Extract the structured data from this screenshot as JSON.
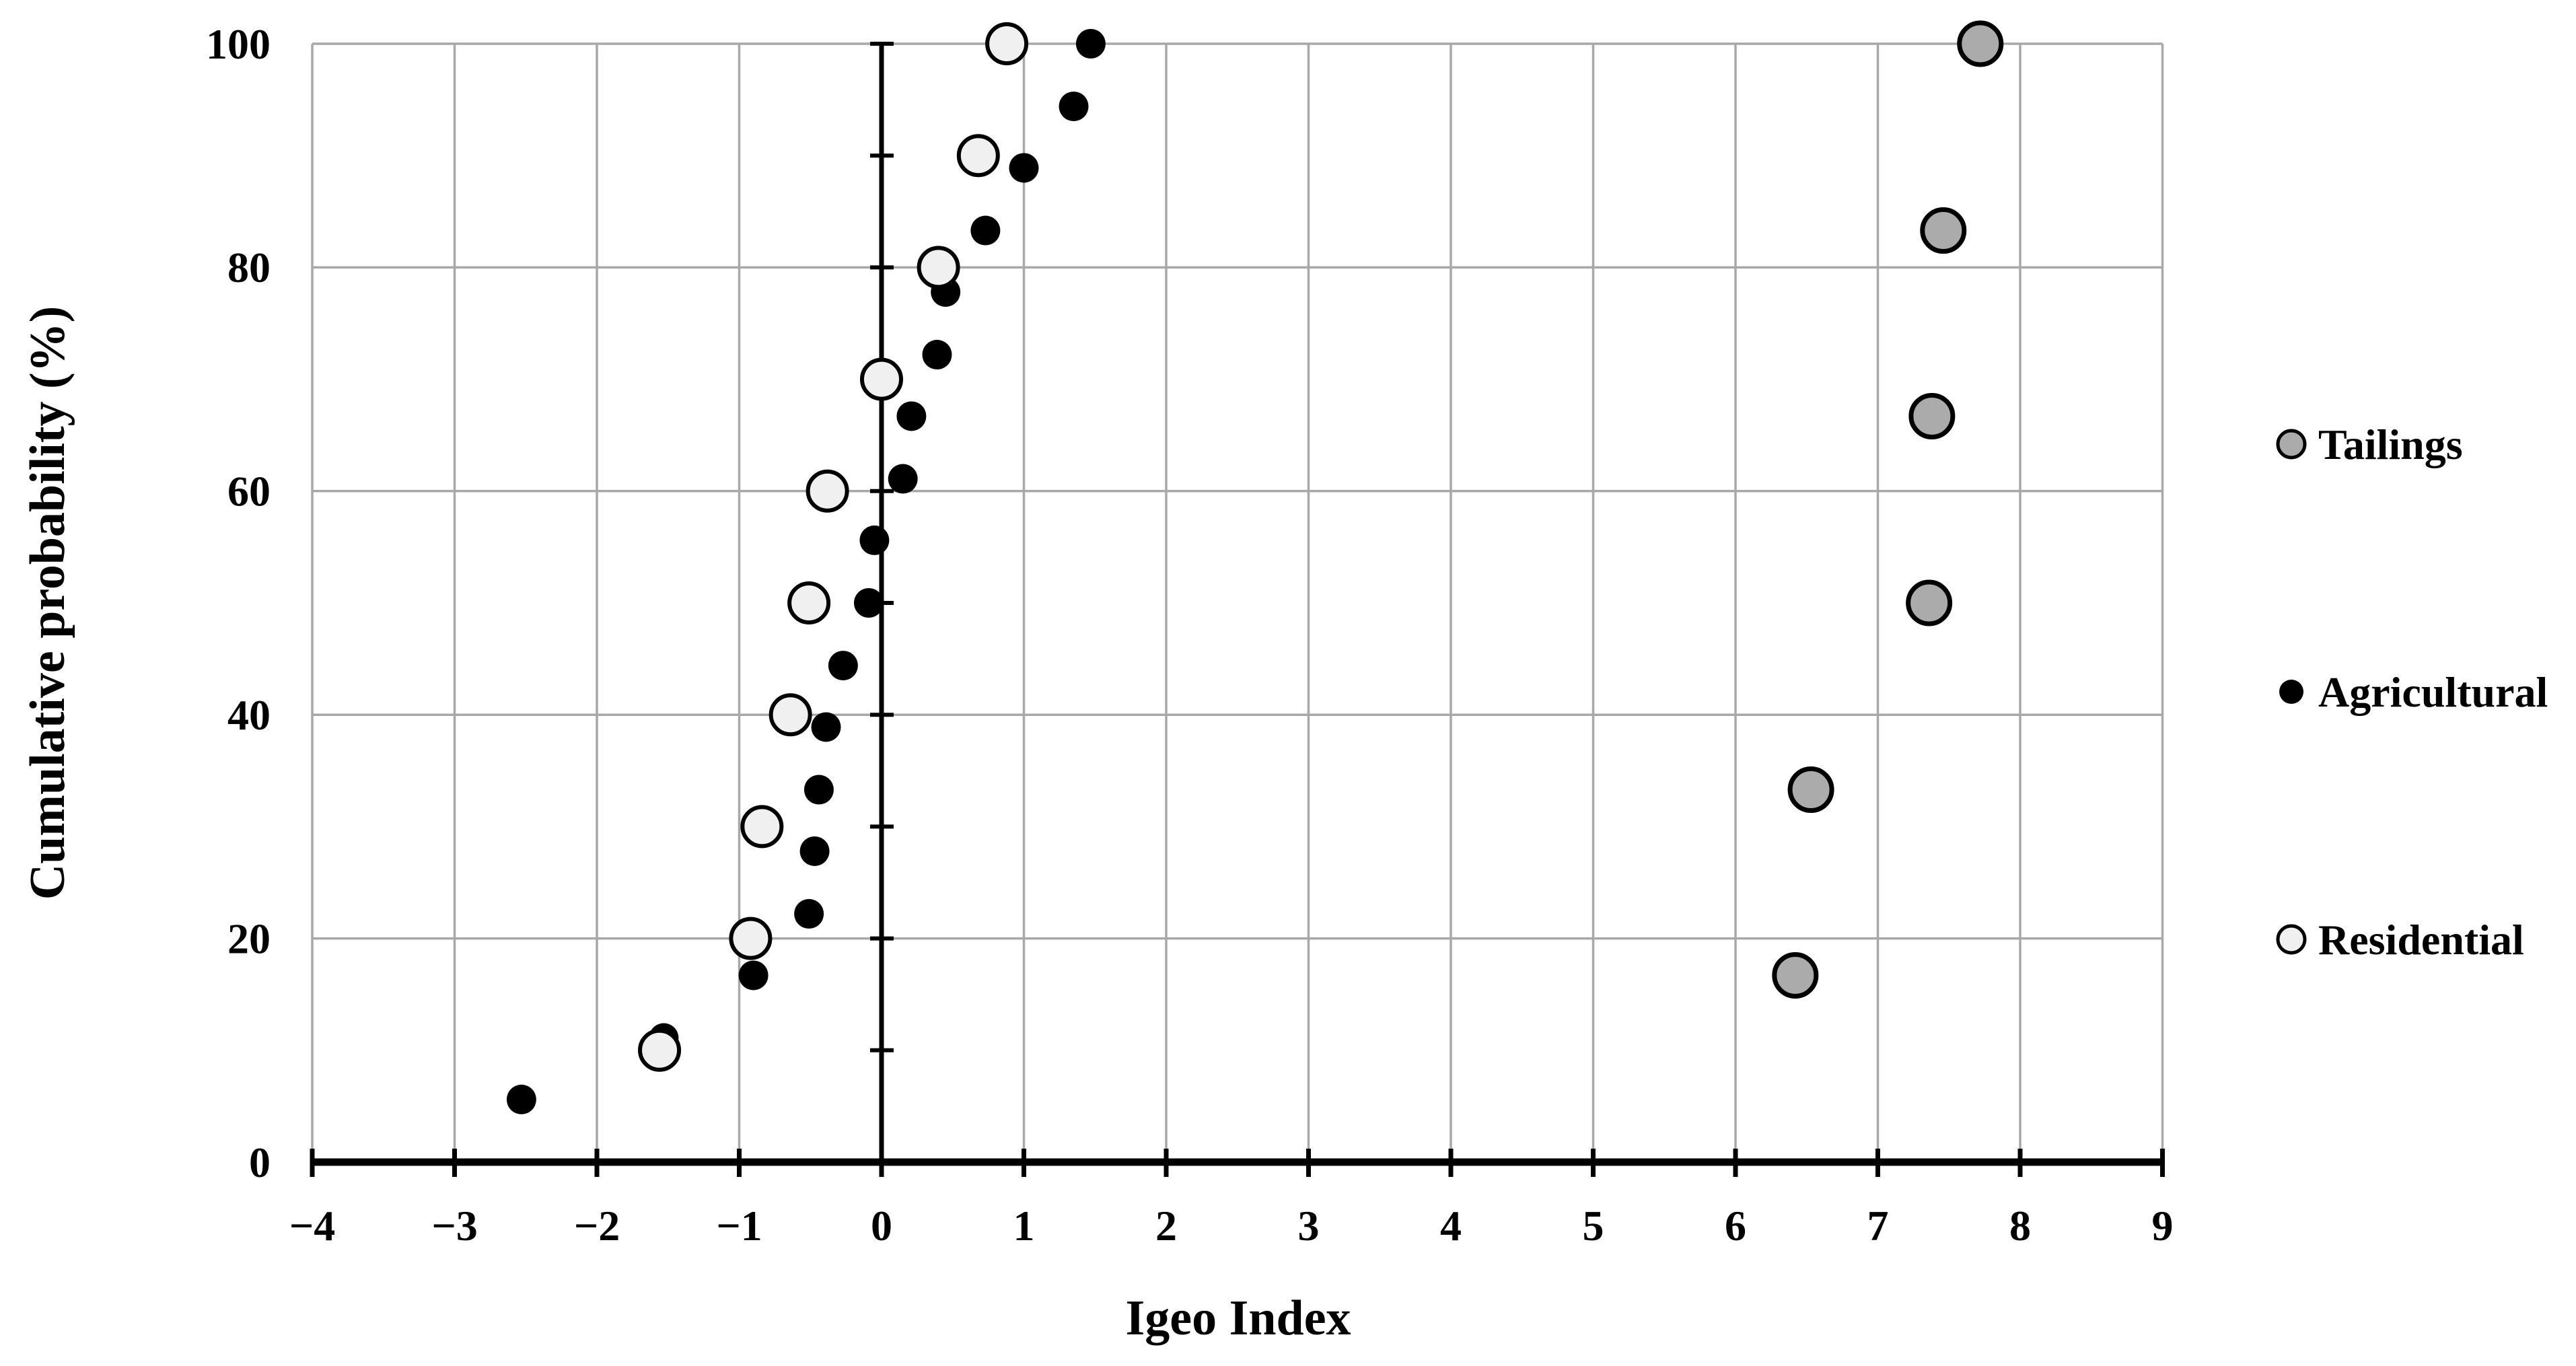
{
  "figure": {
    "background": "#ffffff",
    "text_color": "#000000"
  },
  "chart_data": {
    "type": "scatter",
    "title": "",
    "xlabel": "Igeo Index",
    "ylabel": "Cumulative probability (%)",
    "xlim": [
      -4,
      9
    ],
    "ylim": [
      0,
      100
    ],
    "x_tick_values": [
      -4,
      -3,
      -2,
      -1,
      0,
      1,
      2,
      3,
      4,
      5,
      6,
      7,
      8,
      9
    ],
    "x_tick_labels": [
      "−4",
      "−3",
      "−2",
      "−1",
      "0",
      "1",
      "2",
      "3",
      "4",
      "5",
      "6",
      "7",
      "8",
      "9"
    ],
    "y_tick_values": [
      0,
      20,
      40,
      60,
      80,
      100
    ],
    "y_tick_labels": [
      "0",
      "20",
      "40",
      "60",
      "80",
      "100"
    ],
    "y_axis_minor_tick_step": 10,
    "grid": true,
    "grid_color": "#a8a8a8",
    "axis_color": "#000000",
    "y_axis_drawn_at_x": 0,
    "legend_position": "right",
    "series": [
      {
        "name": "Tailings",
        "z": 2,
        "marker": {
          "shape": "circle",
          "fill": "#ababab",
          "stroke": "#000000",
          "radius": 31,
          "stroke_width": 7,
          "legend_radius": 20,
          "legend_stroke_width": 5
        },
        "points": [
          [
            6.42,
            16.7
          ],
          [
            6.53,
            33.3
          ],
          [
            7.36,
            50.0
          ],
          [
            7.38,
            66.7
          ],
          [
            7.46,
            83.3
          ],
          [
            7.72,
            100.0
          ]
        ]
      },
      {
        "name": "Agricultural",
        "z": 0,
        "marker": {
          "shape": "dot",
          "fill": "#000000",
          "stroke": "none",
          "radius": 22,
          "stroke_width": 0,
          "legend_radius": 18,
          "legend_stroke_width": 0
        },
        "points": [
          [
            -2.53,
            5.6
          ],
          [
            -1.53,
            11.1
          ],
          [
            -0.9,
            16.7
          ],
          [
            -0.51,
            22.2
          ],
          [
            -0.47,
            27.8
          ],
          [
            -0.44,
            33.3
          ],
          [
            -0.39,
            38.9
          ],
          [
            -0.27,
            44.4
          ],
          [
            -0.09,
            50.0
          ],
          [
            -0.05,
            55.6
          ],
          [
            0.15,
            61.1
          ],
          [
            0.21,
            66.7
          ],
          [
            0.39,
            72.2
          ],
          [
            0.45,
            77.8
          ],
          [
            0.73,
            83.3
          ],
          [
            1.0,
            88.9
          ],
          [
            1.35,
            94.4
          ],
          [
            1.47,
            100.0
          ]
        ]
      },
      {
        "name": "Residential",
        "z": 1,
        "marker": {
          "shape": "circle",
          "fill": "#f0f0f0",
          "stroke": "#000000",
          "radius": 29,
          "stroke_width": 6,
          "legend_radius": 20,
          "legend_stroke_width": 5
        },
        "points": [
          [
            -1.56,
            10.0
          ],
          [
            -0.92,
            20.0
          ],
          [
            -0.84,
            30.0
          ],
          [
            -0.64,
            40.0
          ],
          [
            -0.51,
            50.0
          ],
          [
            -0.38,
            60.0
          ],
          [
            0.0,
            70.0
          ],
          [
            0.4,
            80.0
          ],
          [
            0.68,
            90.0
          ],
          [
            0.88,
            100.0
          ]
        ]
      }
    ]
  },
  "legend": {
    "items": [
      {
        "label": "Tailings"
      },
      {
        "label": "Agricultural"
      },
      {
        "label": "Residential"
      }
    ]
  }
}
